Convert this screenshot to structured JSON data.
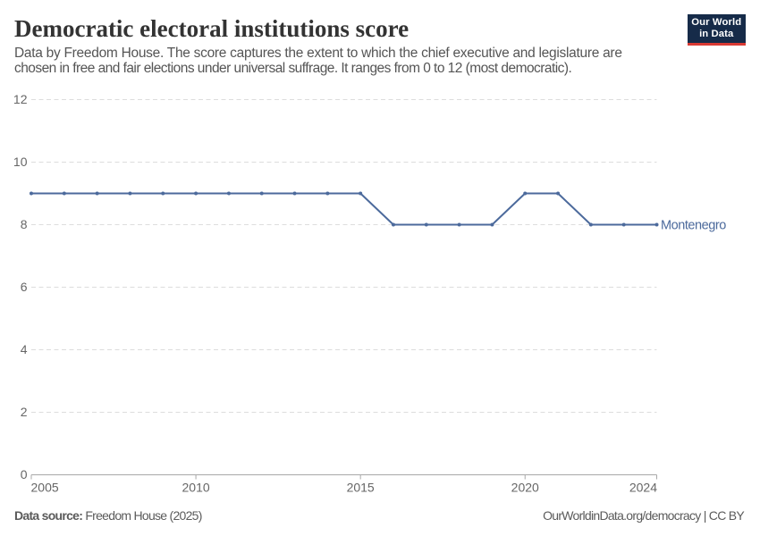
{
  "header": {
    "title": "Democratic electoral institutions score",
    "subtitle_line1": "Data by Freedom House. The score captures the extent to which the chief executive and legislature are",
    "subtitle_line2": "chosen in free and fair elections under universal suffrage. It ranges from 0 to 12 (most democratic).",
    "logo": {
      "line1": "Our World",
      "line2": "in Data",
      "bg_color": "#162b49",
      "bar_color": "#d93a34"
    }
  },
  "footer": {
    "source_label": "Data source:",
    "source_value": "Freedom House (2025)",
    "credit": "OurWorldinData.org/democracy | CC BY"
  },
  "chart_data": {
    "type": "line",
    "title": "Democratic electoral institutions score",
    "xlabel": "",
    "ylabel": "",
    "xlim": [
      2005,
      2024
    ],
    "ylim": [
      0,
      12
    ],
    "xticks": [
      2005,
      2010,
      2015,
      2020,
      2024
    ],
    "yticks": [
      0,
      2,
      4,
      6,
      8,
      10,
      12
    ],
    "grid": "horizontal-dashed",
    "legend_position": "end-of-line",
    "x": [
      2005,
      2006,
      2007,
      2008,
      2009,
      2010,
      2011,
      2012,
      2013,
      2014,
      2015,
      2016,
      2017,
      2018,
      2019,
      2020,
      2021,
      2022,
      2023,
      2024
    ],
    "series": [
      {
        "name": "Montenegro",
        "color": "#4C6A9C",
        "values": [
          9,
          9,
          9,
          9,
          9,
          9,
          9,
          9,
          9,
          9,
          9,
          8,
          8,
          8,
          8,
          9,
          9,
          8,
          8,
          8
        ]
      }
    ],
    "colors": {
      "gridline": "#dddddd",
      "axis": "#a8a8a8",
      "tick_label": "#666666"
    }
  }
}
